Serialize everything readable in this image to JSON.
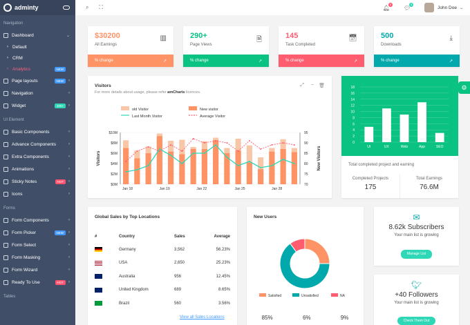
{
  "app": {
    "name": "adminty"
  },
  "sidebar": {
    "sections": {
      "navigation": "Navigation",
      "ui": "UI Element",
      "forms": "Forms",
      "tables": "Tables"
    },
    "dashboard": "Dashboard",
    "sub": [
      "Default",
      "CRM",
      "Analytics"
    ],
    "analytics_badge": "NEW",
    "nav_items": [
      {
        "label": "Page layouts",
        "badge": "NEW"
      },
      {
        "label": "Navigation",
        "badge": ""
      },
      {
        "label": "Widget",
        "badge": "100+"
      }
    ],
    "ui_items": [
      {
        "label": "Basic Components",
        "badge": ""
      },
      {
        "label": "Advance Components",
        "badge": ""
      },
      {
        "label": "Extra Components",
        "badge": ""
      },
      {
        "label": "Animations",
        "badge": ""
      },
      {
        "label": "Sticky Notes",
        "badge": "HOT"
      },
      {
        "label": "Icons",
        "badge": ""
      }
    ],
    "form_items": [
      {
        "label": "Form Components",
        "badge": ""
      },
      {
        "label": "Form Picker",
        "badge": "NEW"
      },
      {
        "label": "Form Select",
        "badge": ""
      },
      {
        "label": "Form Masking",
        "badge": ""
      },
      {
        "label": "Form Wizard",
        "badge": ""
      },
      {
        "label": "Ready To Use",
        "badge": "HOT"
      }
    ]
  },
  "topbar": {
    "user_name": "John Doe",
    "notif_count": "5",
    "msg_count": "3"
  },
  "stats": [
    {
      "value": "$30200",
      "label": "All Earnings",
      "change": "% change",
      "color": "#fe9365",
      "icon": "bar-chart-icon"
    },
    {
      "value": "290+",
      "label": "Page Views",
      "change": "% change",
      "color": "#0ac282",
      "icon": "document-icon"
    },
    {
      "value": "145",
      "label": "Task Completed",
      "change": "% change",
      "color": "#fe5d70",
      "icon": "calendar-icon"
    },
    {
      "value": "500",
      "label": "Downloads",
      "change": "% change",
      "color": "#01a9ac",
      "icon": "download-icon"
    }
  ],
  "visitors": {
    "title": "Visitors",
    "subtitle_pre": "For more details about usage, please refer ",
    "subtitle_link": "amCharts",
    "subtitle_post": " licences."
  },
  "chart_data": [
    {
      "type": "bar",
      "legend": [
        "old Visitor",
        "New visitor",
        "Last Month Visitor",
        "Average Visitor"
      ],
      "xlabel": "",
      "ylabel": "Visitors",
      "y2label": "New Visitors",
      "y_ticks": [
        "$0M",
        "$2M",
        "$4M",
        "$6M",
        "$8M",
        "$10M"
      ],
      "y2_ticks": [
        "70",
        "75",
        "80",
        "85",
        "90",
        "95"
      ],
      "x_ticks": [
        "Jan 18",
        "Jan 19",
        "Jan 22",
        "Jan 25",
        "Jan 28"
      ],
      "ylim": [
        0,
        10
      ],
      "y2lim": [
        70,
        95
      ],
      "series": [
        {
          "name": "old Visitor",
          "values": [
            8.5,
            6.5,
            7.3,
            9.8,
            8.4,
            8.6,
            7.2,
            8.3,
            9.0,
            7.0,
            8.8,
            7.5,
            5.2,
            7.0,
            8.7,
            7.0
          ]
        },
        {
          "name": "New visitor",
          "values": [
            7.0,
            5.0,
            6.0,
            9.3,
            6.3,
            5.8,
            6.8,
            6.8,
            8.5,
            6.0,
            6.5,
            4.2,
            2.9,
            6.3,
            6.8,
            6.2
          ]
        },
        {
          "name": "Last Month Visitor",
          "values": [
            76,
            77,
            79,
            87,
            84,
            80,
            85,
            85,
            89,
            83,
            79,
            81,
            78,
            79,
            82,
            80
          ]
        },
        {
          "name": "Average Visitor",
          "values": [
            81,
            86,
            88,
            86,
            89,
            86,
            92,
            90,
            91,
            90,
            86,
            91,
            87,
            89,
            90,
            89
          ]
        }
      ]
    },
    {
      "type": "bar",
      "categories": [
        "UI",
        "UX",
        "Web",
        "App",
        "SEO"
      ],
      "values": [
        5,
        11,
        9,
        13,
        3
      ],
      "y_ticks": [
        "0",
        "2",
        "4",
        "6",
        "8",
        "10",
        "12",
        "14",
        "16",
        "18"
      ],
      "ylim": [
        0,
        18
      ]
    },
    {
      "type": "pie",
      "categories": [
        "Satisfied",
        "Unsatisfied",
        "NA"
      ],
      "values": [
        25,
        65,
        10
      ],
      "colors": [
        "#fe9365",
        "#01a9ac",
        "#fe5d70"
      ]
    }
  ],
  "project": {
    "caption": "Total completed project and earning",
    "left_label": "Completed Projects",
    "left_value": "175",
    "right_label": "Total Earnings",
    "right_value": "76.6M"
  },
  "geo": {
    "title": "Global Sales by Top Locations",
    "headers": [
      "#",
      "Country",
      "Sales",
      "Average"
    ],
    "rows": [
      {
        "country": "Germany",
        "sales": "3,562",
        "avg": "56.23%"
      },
      {
        "country": "USA",
        "sales": "2,650",
        "avg": "25.23%"
      },
      {
        "country": "Australia",
        "sales": "956",
        "avg": "12.45%"
      },
      {
        "country": "United Kingdom",
        "sales": "689",
        "avg": "8.65%"
      },
      {
        "country": "Brazil",
        "sales": "560",
        "avg": "3.56%"
      }
    ],
    "link": "View all Sales Locations"
  },
  "new_users": {
    "title": "New Users",
    "percents": [
      "85%",
      "6%",
      "9%"
    ]
  },
  "subscribers": {
    "value": "8.62k Subscribers",
    "desc": "Your main list is growing",
    "button": "Manage List"
  },
  "followers": {
    "value": "+40 Followers",
    "desc": "Your main list is growing",
    "button": "Check Them Out"
  }
}
